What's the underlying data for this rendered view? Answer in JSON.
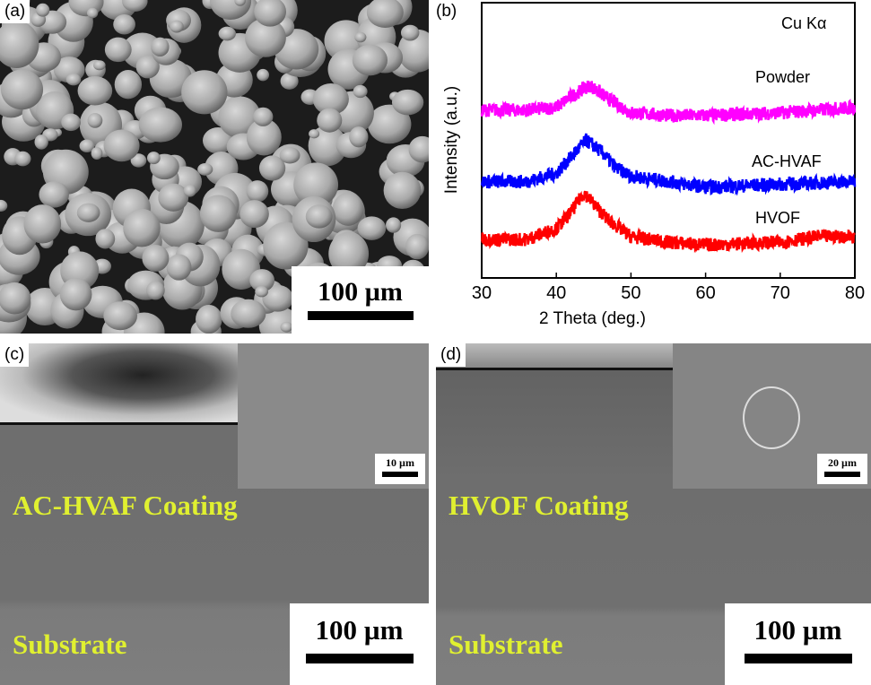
{
  "panels": {
    "a": {
      "label": "(a)",
      "scale": "100 µm"
    },
    "b": {
      "label": "(b)"
    },
    "c": {
      "label": "(c)",
      "scale": "100 µm",
      "inset_scale": "10 µm",
      "coating_label": "AC-HVAF Coating",
      "substrate_label": "Substrate"
    },
    "d": {
      "label": "(d)",
      "scale": "100 µm",
      "inset_scale": "20 µm",
      "coating_label": "HVOF Coating",
      "substrate_label": "Substrate"
    }
  },
  "chart_data": {
    "type": "line",
    "title": "",
    "annotation": "Cu Kα",
    "xlabel": "2 Theta (deg.)",
    "ylabel": "Intensity (a.u.)",
    "xlim": [
      30,
      80
    ],
    "ylim": [
      0,
      100
    ],
    "xticks": [
      30,
      40,
      50,
      60,
      70,
      80
    ],
    "grid": false,
    "series": [
      {
        "name": "Powder",
        "color": "#ff00ff",
        "x": [
          30,
          36,
          40,
          42,
          44.5,
          47,
          50,
          55,
          60,
          70,
          80
        ],
        "y": [
          61,
          61,
          62,
          66,
          70,
          65,
          60,
          59,
          59,
          60,
          62
        ]
      },
      {
        "name": "AC-HVAF",
        "color": "#0000ff",
        "x": [
          30,
          36,
          40,
          42,
          44,
          46,
          48,
          50,
          55,
          60,
          70,
          80
        ],
        "y": [
          35,
          35,
          38,
          44,
          50,
          46,
          40,
          37,
          35,
          33,
          34,
          35
        ]
      },
      {
        "name": "HVOF",
        "color": "#ff0000",
        "x": [
          30,
          36,
          40,
          42,
          43.7,
          45,
          47,
          50,
          55,
          60,
          70,
          75,
          80
        ],
        "y": [
          14,
          14,
          18,
          24,
          31,
          27,
          21,
          15,
          13,
          12,
          13,
          15,
          15
        ]
      }
    ]
  }
}
